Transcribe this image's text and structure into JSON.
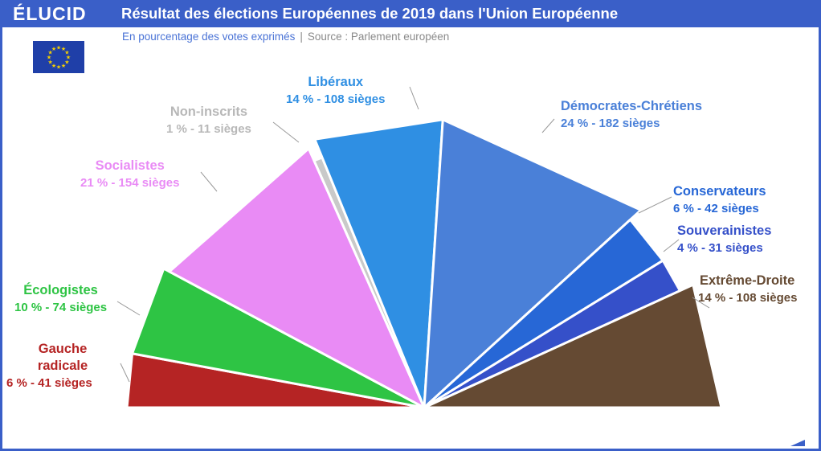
{
  "header": {
    "logo": "ÉLUCID",
    "title": "Résultat des élections Européennes de 2019 dans l'Union Européenne"
  },
  "subtitle": {
    "text": "En pourcentage des votes exprimés",
    "separator": "|",
    "source": "Source : Parlement européen"
  },
  "flag": {
    "icon": "eu-flag-icon",
    "background": "#1f3fa8",
    "star_color": "#f5d000"
  },
  "chart_data": {
    "type": "pie",
    "subtype": "semicircle",
    "series": [
      {
        "name": "Gauche radicale",
        "percent": 6,
        "seats": 41,
        "label": "6 % - 41 sièges",
        "color": "#b52424"
      },
      {
        "name": "Écologistes",
        "percent": 10,
        "seats": 74,
        "label": "10 % - 74 sièges",
        "color": "#2ec444"
      },
      {
        "name": "Socialistes",
        "percent": 21,
        "seats": 154,
        "label": "21 % - 154 sièges",
        "color": "#e98bf5"
      },
      {
        "name": "Non-inscrits",
        "percent": 1,
        "seats": 11,
        "label": "1 % - 11 sièges",
        "color": "#c9c9c9"
      },
      {
        "name": "Libéraux",
        "percent": 14,
        "seats": 108,
        "label": "14 % - 108 sièges",
        "color": "#2f8fe3"
      },
      {
        "name": "Démocrates-Chrétiens",
        "percent": 24,
        "seats": 182,
        "label": "24 % - 182 sièges",
        "color": "#4a80d8"
      },
      {
        "name": "Conservateurs",
        "percent": 6,
        "seats": 42,
        "label": "6 % - 42 sièges",
        "color": "#2767d6"
      },
      {
        "name": "Souverainistes",
        "percent": 4,
        "seats": 31,
        "label": "4 % - 31 sièges",
        "color": "#3550c9"
      },
      {
        "name": "Extrême-Droite",
        "percent": 14,
        "seats": 108,
        "label": "14 % - 108 sièges",
        "color": "#654a33"
      }
    ]
  }
}
